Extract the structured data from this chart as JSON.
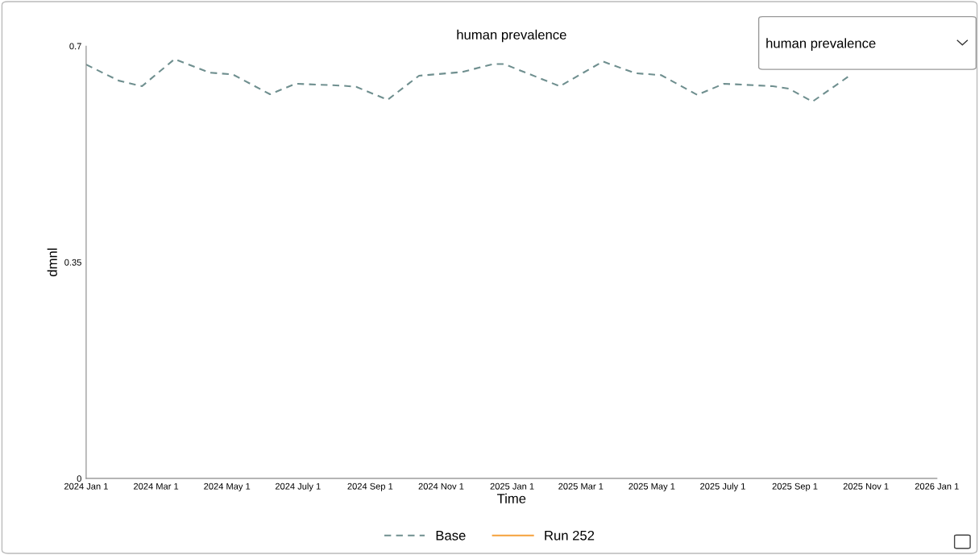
{
  "chart_data": {
    "type": "line",
    "title": "human prevalence",
    "xlabel": "Time",
    "ylabel": "dmnl",
    "x": [
      "2024-01-01",
      "2024-01-29",
      "2024-02-18",
      "2024-03-17",
      "2024-04-16",
      "2024-05-06",
      "2024-06-07",
      "2024-06-29",
      "2024-08-07",
      "2024-08-20",
      "2024-09-16",
      "2024-10-13",
      "2024-11-19",
      "2024-12-16",
      "2024-12-25",
      "2025-02-11",
      "2025-03-20",
      "2025-04-17",
      "2025-05-09",
      "2025-06-09",
      "2025-07-02",
      "2025-08-13",
      "2025-08-27",
      "2025-09-16",
      "2025-10-18"
    ],
    "series": [
      {
        "name": "Base",
        "color": "#6f8f8f",
        "line_style": "dashed",
        "values": [
          0.67,
          0.644,
          0.635,
          0.679,
          0.657,
          0.654,
          0.622,
          0.639,
          0.636,
          0.634,
          0.613,
          0.652,
          0.658,
          0.671,
          0.671,
          0.635,
          0.675,
          0.656,
          0.653,
          0.621,
          0.639,
          0.635,
          0.631,
          0.61,
          0.652
        ]
      },
      {
        "name": "Run 252",
        "color": "#f5a03a",
        "line_style": "solid",
        "values": [
          null,
          null,
          null,
          null,
          null,
          null,
          null,
          null,
          null,
          null,
          null,
          null,
          null,
          null,
          null,
          null,
          null,
          null,
          null,
          null,
          null,
          null,
          null,
          null,
          null
        ]
      }
    ],
    "xlim": [
      "2024-01-01",
      "2026-01-01"
    ],
    "xticks": [
      {
        "value": "2024-01-01",
        "label": "2024 Jan 1"
      },
      {
        "value": "2024-03-01",
        "label": "2024 Mar 1"
      },
      {
        "value": "2024-05-01",
        "label": "2024 May 1"
      },
      {
        "value": "2024-07-01",
        "label": "2024 July 1"
      },
      {
        "value": "2024-09-01",
        "label": "2024 Sep 1"
      },
      {
        "value": "2024-11-01",
        "label": "2024 Nov 1"
      },
      {
        "value": "2025-01-01",
        "label": "2025 Jan 1"
      },
      {
        "value": "2025-03-01",
        "label": "2025 Mar 1"
      },
      {
        "value": "2025-05-01",
        "label": "2025 May 1"
      },
      {
        "value": "2025-07-01",
        "label": "2025 July 1"
      },
      {
        "value": "2025-09-01",
        "label": "2025 Sep 1"
      },
      {
        "value": "2025-11-01",
        "label": "2025 Nov 1"
      },
      {
        "value": "2026-01-01",
        "label": "2026 Jan 1"
      }
    ],
    "ylim": [
      0,
      0.7
    ],
    "yticks": [
      0,
      0.35,
      0.7
    ],
    "grid": false,
    "legend": "bottom",
    "marker": "none",
    "annotations": [
      "human prevalence"
    ]
  }
}
